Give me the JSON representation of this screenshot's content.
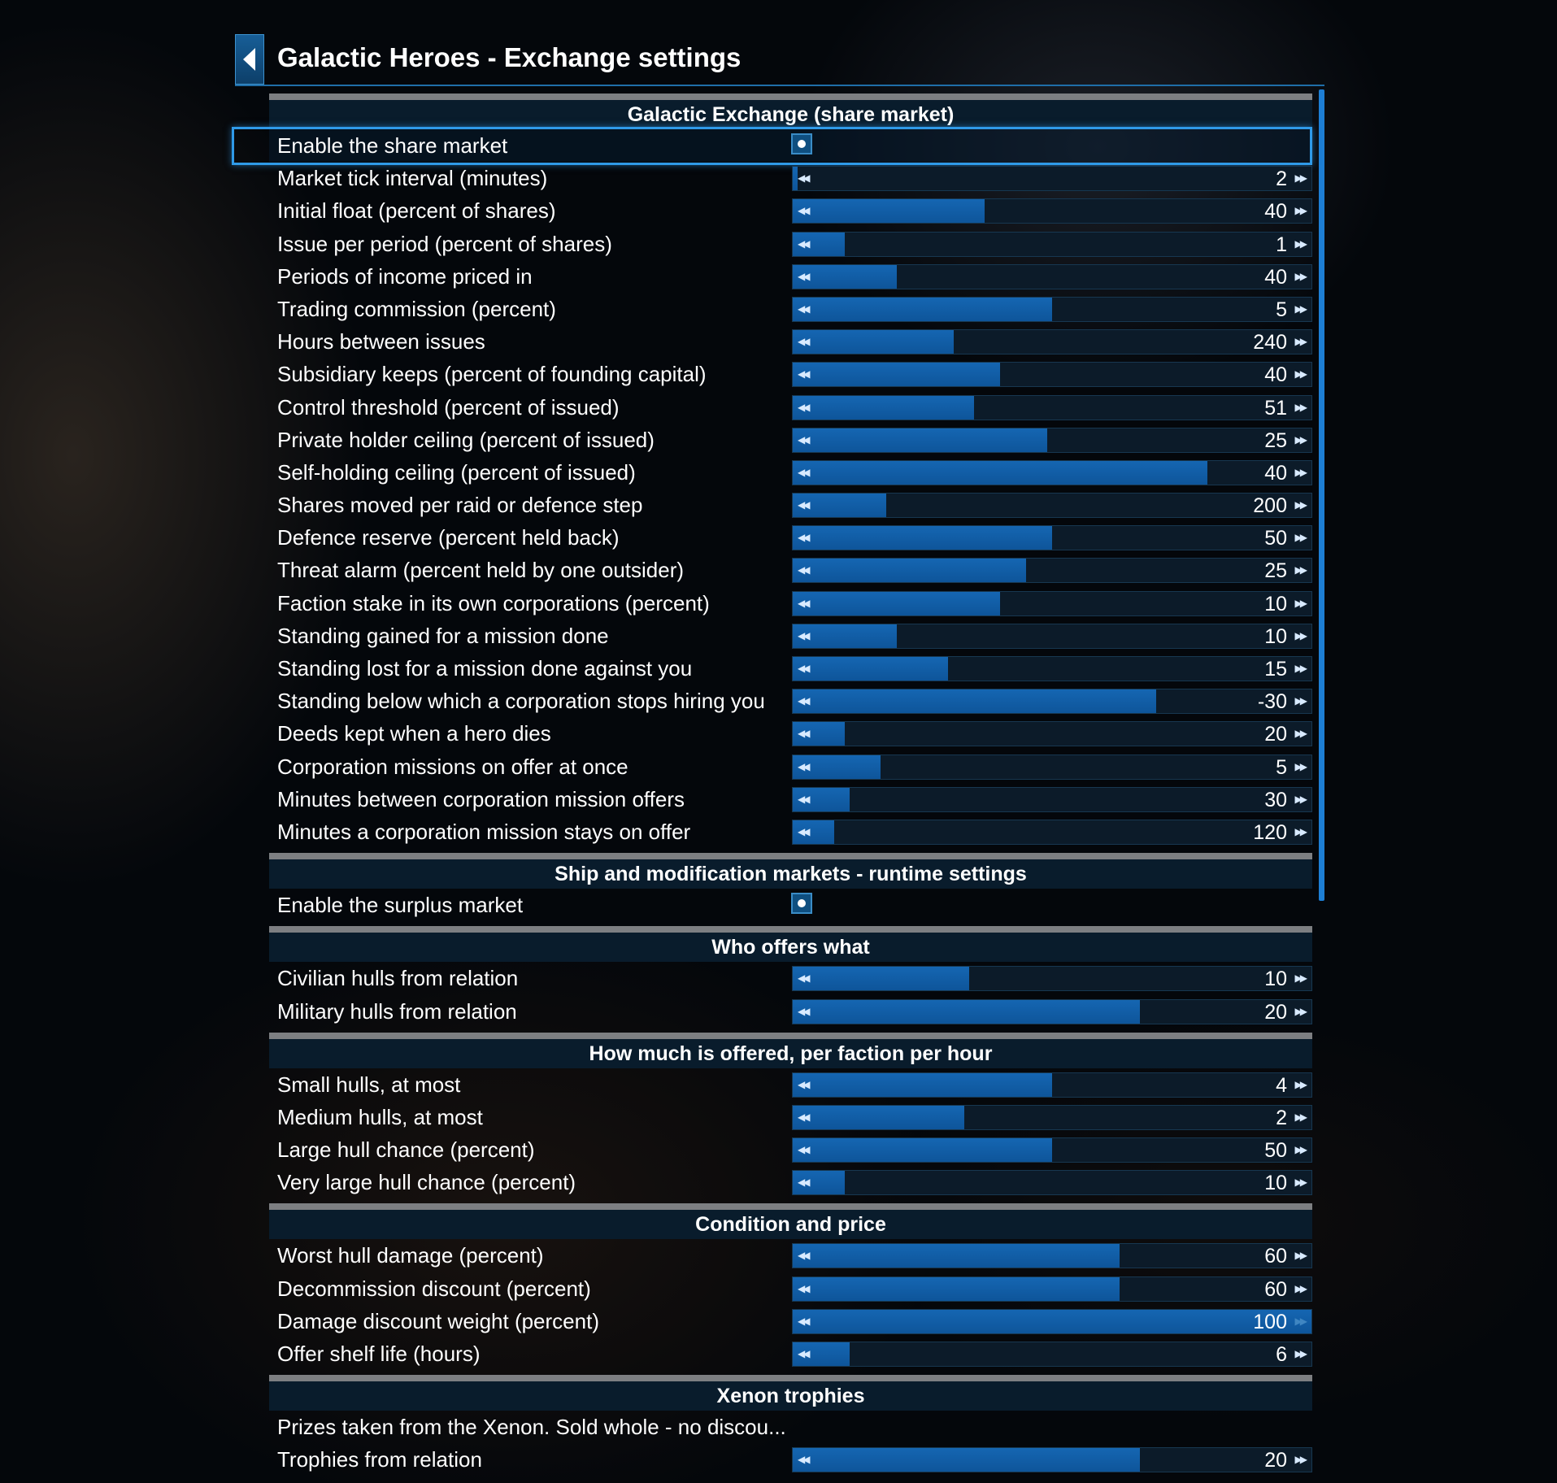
{
  "title": "Galactic Heroes - Exchange settings",
  "icons": {
    "back": "chevron-left-icon",
    "decrease": "double-left-arrow-icon",
    "increase": "double-right-arrow-icon"
  },
  "colors": {
    "accent": "#1d7ed4",
    "slider_fill": "#1566b2",
    "highlight_border": "#2f9ae8",
    "section_bar": "#7d7f82"
  },
  "arrows": {
    "left": "◀◀",
    "right": "▶▶"
  },
  "sections": [
    {
      "title": "Galactic Exchange (share market)",
      "rows": [
        {
          "label": "Enable the share market",
          "type": "toggle",
          "checked": true,
          "focused": true
        },
        {
          "label": "Market tick interval (minutes)",
          "type": "slider",
          "value": "2",
          "level": 0.01
        },
        {
          "label": "Initial float (percent of shares)",
          "type": "slider",
          "value": "40",
          "level": 0.37
        },
        {
          "label": "Issue per period (percent of shares)",
          "type": "slider",
          "value": "1",
          "level": 0.1
        },
        {
          "label": "Periods of income priced in",
          "type": "slider",
          "value": "40",
          "level": 0.2
        },
        {
          "label": "Trading commission (percent)",
          "type": "slider",
          "value": "5",
          "level": 0.5
        },
        {
          "label": "Hours between issues",
          "type": "slider",
          "value": "240",
          "level": 0.31
        },
        {
          "label": "Subsidiary keeps (percent of founding capital)",
          "type": "slider",
          "value": "40",
          "level": 0.4
        },
        {
          "label": "Control threshold (percent of issued)",
          "type": "slider",
          "value": "51",
          "level": 0.35
        },
        {
          "label": "Private holder ceiling (percent of issued)",
          "type": "slider",
          "value": "25",
          "level": 0.49
        },
        {
          "label": "Self-holding ceiling (percent of issued)",
          "type": "slider",
          "value": "40",
          "level": 0.8
        },
        {
          "label": "Shares moved per raid or defence step",
          "type": "slider",
          "value": "200",
          "level": 0.18
        },
        {
          "label": "Defence reserve (percent held back)",
          "type": "slider",
          "value": "50",
          "level": 0.5
        },
        {
          "label": "Threat alarm (percent held by one outsider)",
          "type": "slider",
          "value": "25",
          "level": 0.45
        },
        {
          "label": "Faction stake in its own corporations (percent)",
          "type": "slider",
          "value": "10",
          "level": 0.4
        },
        {
          "label": "Standing gained for a mission done",
          "type": "slider",
          "value": "10",
          "level": 0.2
        },
        {
          "label": "Standing lost for a mission done against you",
          "type": "slider",
          "value": "15",
          "level": 0.3
        },
        {
          "label": "Standing below which a corporation stops hiring you",
          "type": "slider",
          "value": "-30",
          "level": 0.7
        },
        {
          "label": "Deeds kept when a hero dies",
          "type": "slider",
          "value": "20",
          "level": 0.1
        },
        {
          "label": "Corporation missions on offer at once",
          "type": "slider",
          "value": "5",
          "level": 0.17
        },
        {
          "label": "Minutes between corporation mission offers",
          "type": "slider",
          "value": "30",
          "level": 0.11
        },
        {
          "label": "Minutes a corporation mission stays on offer",
          "type": "slider",
          "value": "120",
          "level": 0.08
        }
      ]
    },
    {
      "title": "Ship and modification markets - runtime settings",
      "rows": [
        {
          "label": "Enable the surplus market",
          "type": "toggle",
          "checked": false
        }
      ]
    },
    {
      "title": "Who offers what",
      "rows": [
        {
          "label": "Civilian hulls from relation",
          "type": "slider",
          "value": "10",
          "level": 0.34
        },
        {
          "label": "Military hulls from relation",
          "type": "slider",
          "value": "20",
          "level": 0.67
        }
      ]
    },
    {
      "title": "How much is offered, per faction per hour",
      "rows": [
        {
          "label": "Small hulls, at most",
          "type": "slider",
          "value": "4",
          "level": 0.5
        },
        {
          "label": "Medium hulls, at most",
          "type": "slider",
          "value": "2",
          "level": 0.33
        },
        {
          "label": "Large hull chance (percent)",
          "type": "slider",
          "value": "50",
          "level": 0.5
        },
        {
          "label": "Very large hull chance (percent)",
          "type": "slider",
          "value": "10",
          "level": 0.1
        }
      ]
    },
    {
      "title": "Condition and price",
      "rows": [
        {
          "label": "Worst hull damage (percent)",
          "type": "slider",
          "value": "60",
          "level": 0.63
        },
        {
          "label": "Decommission discount (percent)",
          "type": "slider",
          "value": "60",
          "level": 0.63
        },
        {
          "label": "Damage discount weight (percent)",
          "type": "slider",
          "value": "100",
          "level": 1.0,
          "at_max": true
        },
        {
          "label": "Offer shelf life (hours)",
          "type": "slider",
          "value": "6",
          "level": 0.11
        }
      ]
    },
    {
      "title": "Xenon trophies",
      "rows": [
        {
          "label": "Prizes taken from the Xenon. Sold whole - no discou...",
          "type": "text"
        },
        {
          "label": "Trophies from relation",
          "type": "slider",
          "value": "20",
          "level": 0.67
        }
      ]
    }
  ]
}
